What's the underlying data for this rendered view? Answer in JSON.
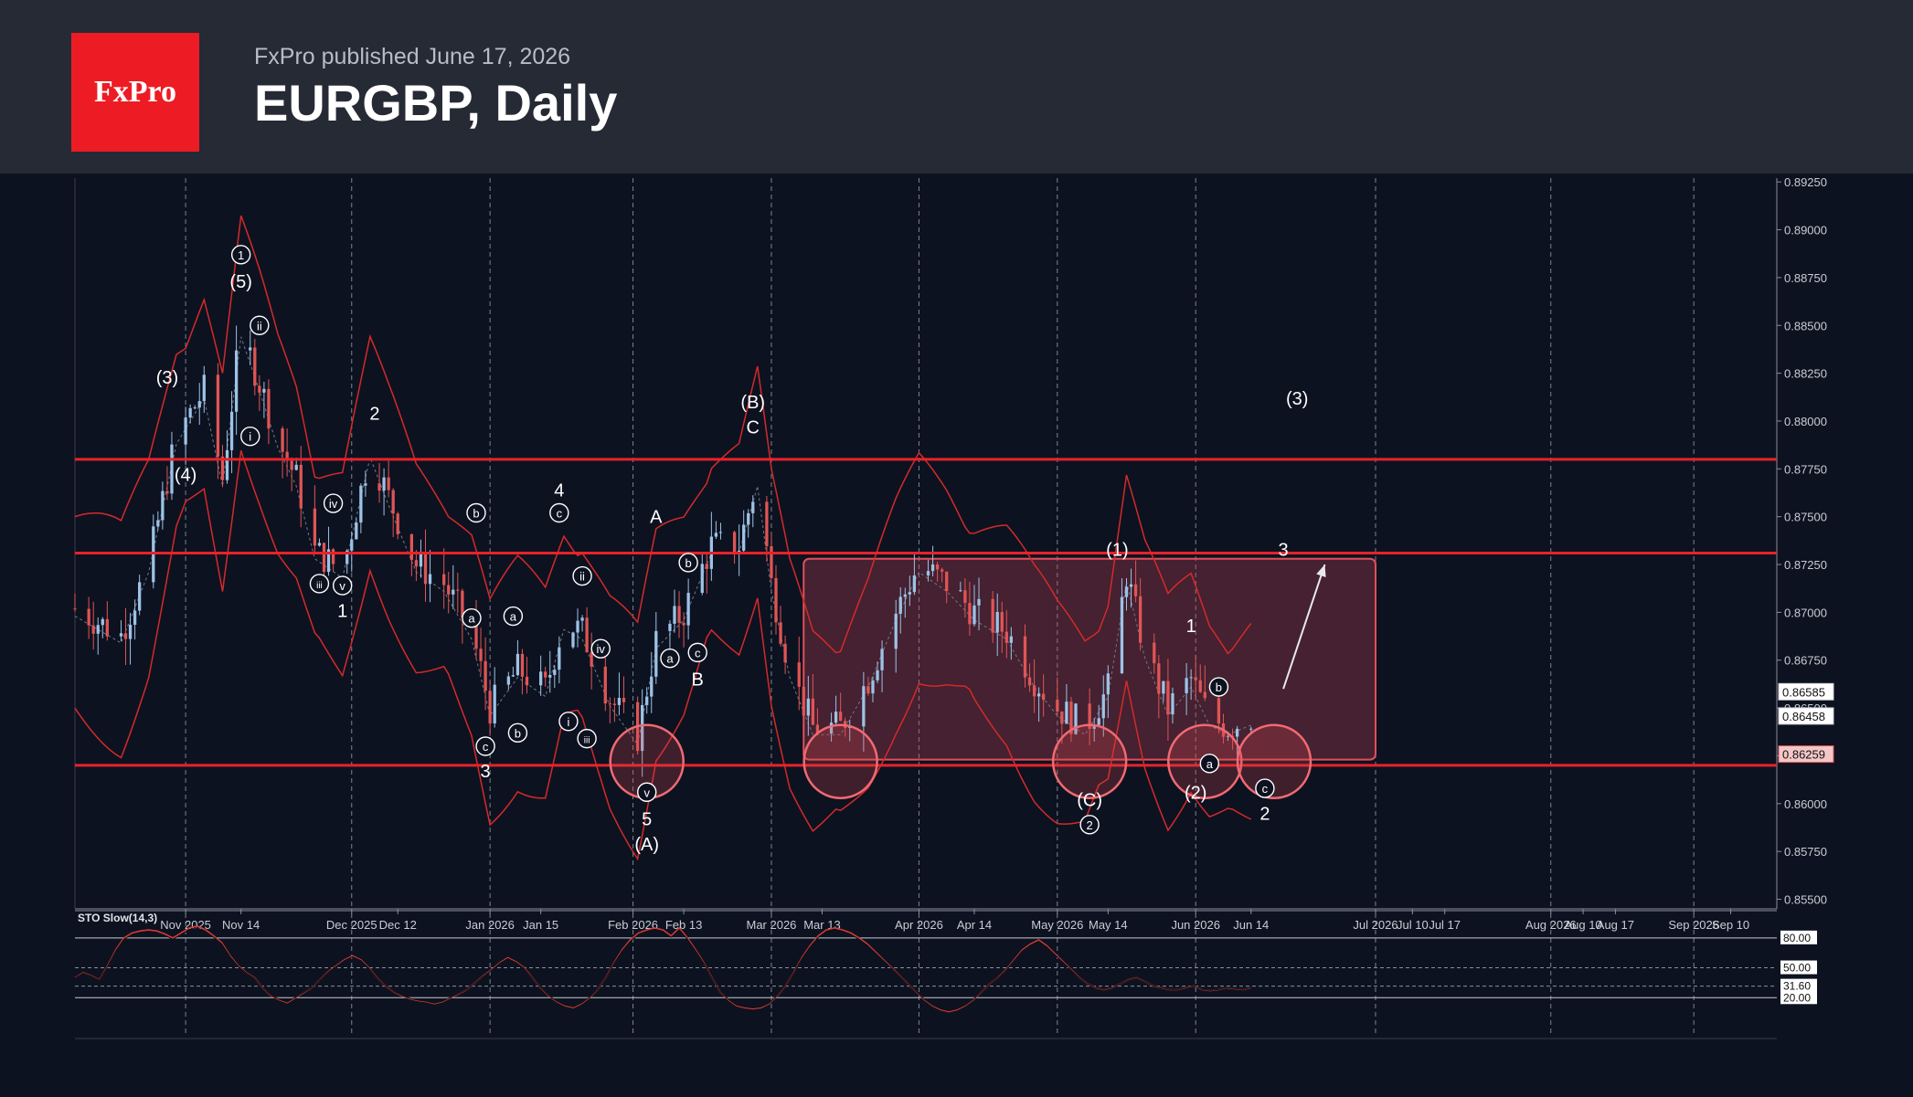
{
  "header": {
    "logo_text": "FxPro",
    "published": "FxPro published June 17, 2026",
    "title": "EURGBP, Daily"
  },
  "colors": {
    "background": "#0d1220",
    "header": "#262a35",
    "brand": "#ed1c24",
    "bull_candle": "#9cc3e6",
    "bear_candle": "#e05555",
    "level_line": "#e8222a",
    "band": "#d42a2a"
  },
  "chart_data": {
    "type": "candlestick",
    "symbol": "EURGBP",
    "timeframe": "Daily",
    "ylim": [
      0.8545,
      0.8927
    ],
    "y_ticks": [
      "0.89250",
      "0.89000",
      "0.88750",
      "0.88500",
      "0.88250",
      "0.88000",
      "0.87750",
      "0.87500",
      "0.87250",
      "0.87000",
      "0.86750",
      "0.86500",
      "0.86250",
      "0.86000",
      "0.85750",
      "0.85500"
    ],
    "x_ticks": [
      "Nov 2025",
      "Nov 14",
      "Dec 2025",
      "Dec 12",
      "Jan 2026",
      "Jan 15",
      "Feb 2026",
      "Feb 13",
      "Mar 2026",
      "Mar 13",
      "Apr 2026",
      "Apr 14",
      "May 2026",
      "May 14",
      "Jun 2026",
      "Jun 14",
      "Jul 2026",
      "Jul 10",
      "Jul 17",
      "Aug 2026",
      "Aug 10",
      "Aug 17",
      "Sep 2026",
      "Sep 10"
    ],
    "x_tick_days": [
      0,
      12,
      36,
      46,
      66,
      77,
      97,
      108,
      127,
      138,
      159,
      171,
      189,
      200,
      219,
      231,
      258,
      266,
      273,
      296,
      303,
      310,
      327,
      335
    ],
    "x_range_days": [
      -24,
      345
    ],
    "last_day": 231,
    "price_labels": [
      {
        "value": 0.86585,
        "text": "0.86585",
        "style": "light"
      },
      {
        "value": 0.86458,
        "text": "0.86458",
        "style": "light"
      },
      {
        "value": 0.86259,
        "text": "0.86259",
        "style": "red"
      }
    ],
    "horizontal_levels": [
      0.878,
      0.8731,
      0.862
    ],
    "zone": {
      "x0": 134,
      "x1": 258,
      "y_top": 0.8728,
      "y_bottom": 0.8623
    },
    "circles": [
      {
        "day": 100,
        "price": 0.8622
      },
      {
        "day": 142,
        "price": 0.8622
      },
      {
        "day": 196,
        "price": 0.8622
      },
      {
        "day": 221,
        "price": 0.8622
      },
      {
        "day": 236,
        "price": 0.8622
      }
    ],
    "forecast_arrow": {
      "from": {
        "day": 238,
        "price": 0.866
      },
      "to": {
        "day": 247,
        "price": 0.8725
      }
    },
    "wave_labels": [
      {
        "text": "1",
        "day": 12,
        "price": 0.8887,
        "circled": true
      },
      {
        "text": "(5)",
        "day": 12,
        "price": 0.8873,
        "circled": false
      },
      {
        "text": "ii",
        "day": 16,
        "price": 0.885,
        "circled": true
      },
      {
        "text": "(3)",
        "day": -4,
        "price": 0.8823,
        "circled": false
      },
      {
        "text": "(4)",
        "day": 0,
        "price": 0.8772,
        "circled": false
      },
      {
        "text": "i",
        "day": 14,
        "price": 0.8792,
        "circled": true
      },
      {
        "text": "2",
        "day": 41,
        "price": 0.8804,
        "circled": false
      },
      {
        "text": "iv",
        "day": 32,
        "price": 0.8757,
        "circled": true
      },
      {
        "text": "iii",
        "day": 29,
        "price": 0.8715,
        "circled": true
      },
      {
        "text": "v",
        "day": 34,
        "price": 0.8714,
        "circled": true
      },
      {
        "text": "1",
        "day": 34,
        "price": 0.8701,
        "circled": false
      },
      {
        "text": "b",
        "day": 63,
        "price": 0.8752,
        "circled": true
      },
      {
        "text": "a",
        "day": 62,
        "price": 0.8697,
        "circled": true
      },
      {
        "text": "a",
        "day": 71,
        "price": 0.8698,
        "circled": true
      },
      {
        "text": "b",
        "day": 72,
        "price": 0.8637,
        "circled": true
      },
      {
        "text": "c",
        "day": 65,
        "price": 0.863,
        "circled": true
      },
      {
        "text": "3",
        "day": 65,
        "price": 0.8617,
        "circled": false
      },
      {
        "text": "4",
        "day": 81,
        "price": 0.8764,
        "circled": false
      },
      {
        "text": "c",
        "day": 81,
        "price": 0.8752,
        "circled": true
      },
      {
        "text": "ii",
        "day": 86,
        "price": 0.8719,
        "circled": true
      },
      {
        "text": "iv",
        "day": 90,
        "price": 0.8681,
        "circled": true
      },
      {
        "text": "i",
        "day": 83,
        "price": 0.8643,
        "circled": true
      },
      {
        "text": "iii",
        "day": 87,
        "price": 0.8634,
        "circled": true
      },
      {
        "text": "A",
        "day": 102,
        "price": 0.875,
        "circled": false
      },
      {
        "text": "b",
        "day": 109,
        "price": 0.8726,
        "circled": true
      },
      {
        "text": "a",
        "day": 105,
        "price": 0.8676,
        "circled": true
      },
      {
        "text": "c",
        "day": 111,
        "price": 0.8679,
        "circled": true
      },
      {
        "text": "B",
        "day": 111,
        "price": 0.8665,
        "circled": false
      },
      {
        "text": "(B)",
        "day": 123,
        "price": 0.881,
        "circled": false
      },
      {
        "text": "C",
        "day": 123,
        "price": 0.8797,
        "circled": false
      },
      {
        "text": "v",
        "day": 100,
        "price": 0.8606,
        "circled": true
      },
      {
        "text": "5",
        "day": 100,
        "price": 0.8592,
        "circled": false
      },
      {
        "text": "(A)",
        "day": 100,
        "price": 0.8579,
        "circled": false
      },
      {
        "text": "(1)",
        "day": 202,
        "price": 0.8733,
        "circled": false
      },
      {
        "text": "1",
        "day": 218,
        "price": 0.8693,
        "circled": false
      },
      {
        "text": "b",
        "day": 224,
        "price": 0.8661,
        "circled": true
      },
      {
        "text": "a",
        "day": 222,
        "price": 0.8621,
        "circled": true
      },
      {
        "text": "c",
        "day": 234,
        "price": 0.8608,
        "circled": true
      },
      {
        "text": "2",
        "day": 234,
        "price": 0.8595,
        "circled": false
      },
      {
        "text": "(C)",
        "day": 196,
        "price": 0.8602,
        "circled": false
      },
      {
        "text": "2",
        "day": 196,
        "price": 0.8589,
        "circled": true
      },
      {
        "text": "(2)",
        "day": 219,
        "price": 0.8606,
        "circled": false
      },
      {
        "text": "3",
        "day": 238,
        "price": 0.8733,
        "circled": false
      },
      {
        "text": "(3)",
        "day": 241,
        "price": 0.8812,
        "circled": false
      }
    ],
    "stochastic": {
      "label": "STO Slow(14,3)",
      "levels": [
        {
          "value": 80,
          "text": "80.00"
        },
        {
          "value": 50,
          "text": "50.00"
        },
        {
          "value": 31.6,
          "text": "31.60"
        },
        {
          "value": 20,
          "text": "20.00"
        }
      ],
      "ylim": [
        -10,
        100
      ],
      "series": [
        40,
        45,
        42,
        38,
        52,
        68,
        80,
        85,
        87,
        88,
        87,
        84,
        80,
        85,
        90,
        92,
        88,
        82,
        75,
        62,
        52,
        45,
        40,
        30,
        22,
        18,
        15,
        20,
        25,
        30,
        38,
        46,
        52,
        58,
        62,
        58,
        50,
        40,
        32,
        26,
        22,
        19,
        17,
        16,
        14,
        16,
        20,
        24,
        28,
        35,
        42,
        48,
        55,
        60,
        56,
        50,
        40,
        30,
        22,
        16,
        12,
        10,
        14,
        20,
        28,
        40,
        55,
        68,
        78,
        85,
        88,
        90,
        88,
        82,
        90,
        80,
        68,
        55,
        40,
        26,
        18,
        12,
        10,
        9,
        10,
        14,
        22,
        32,
        45,
        60,
        72,
        82,
        88,
        90,
        88,
        85,
        80,
        74,
        66,
        58,
        50,
        42,
        34,
        26,
        18,
        12,
        8,
        6,
        8,
        12,
        18,
        26,
        34,
        40,
        48,
        58,
        68,
        74,
        78,
        72,
        64,
        56,
        48,
        40,
        34,
        30,
        28,
        30,
        34,
        38,
        40,
        36,
        32,
        30,
        28,
        28,
        30,
        32,
        28,
        27,
        28,
        30,
        29,
        28,
        30
      ]
    }
  }
}
